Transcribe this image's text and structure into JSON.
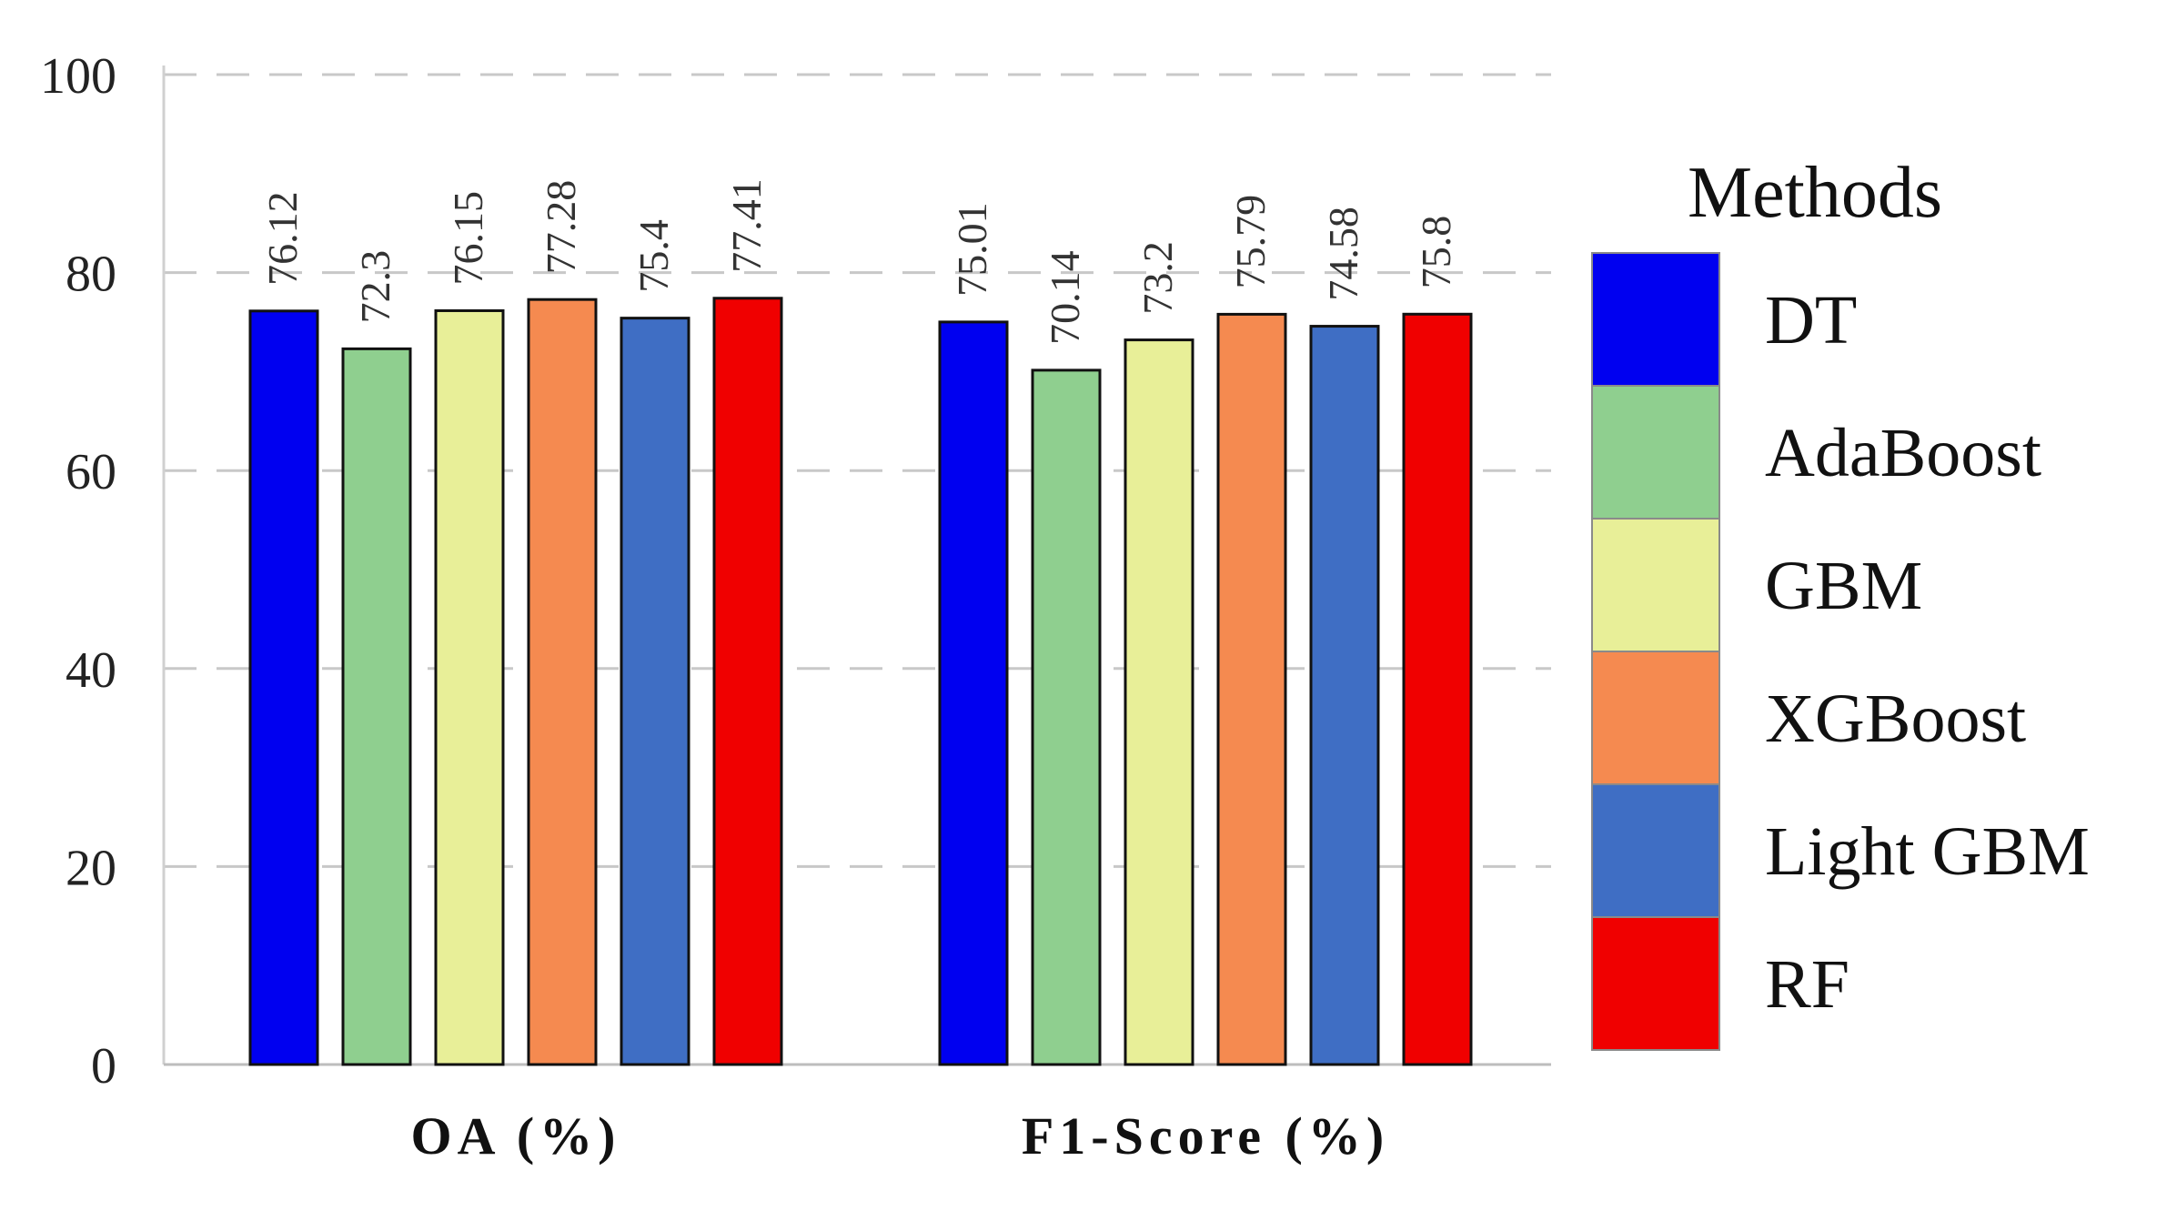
{
  "chart_data": {
    "type": "bar",
    "categories": [
      "OA (%)",
      "F1-Score (%)"
    ],
    "series": [
      {
        "name": "DT",
        "color": "#0000f0",
        "values": [
          76.12,
          75.01
        ]
      },
      {
        "name": "AdaBoost",
        "color": "#8fcf8f",
        "values": [
          72.3,
          70.14
        ]
      },
      {
        "name": "GBM",
        "color": "#e8ef98",
        "values": [
          76.15,
          73.2
        ]
      },
      {
        "name": "XGBoost",
        "color": "#f58a50",
        "values": [
          77.28,
          75.79
        ]
      },
      {
        "name": "Light GBM",
        "color": "#3f6ec4",
        "values": [
          75.4,
          74.58
        ]
      },
      {
        "name": "RF",
        "color": "#f00000",
        "values": [
          77.41,
          75.8
        ]
      }
    ],
    "ylim": [
      0,
      100
    ],
    "yticks": [
      0,
      20,
      40,
      60,
      80,
      100
    ],
    "grid": true,
    "legend": {
      "title": "Methods",
      "position": "right"
    },
    "title": "",
    "xlabel": "",
    "ylabel": ""
  }
}
